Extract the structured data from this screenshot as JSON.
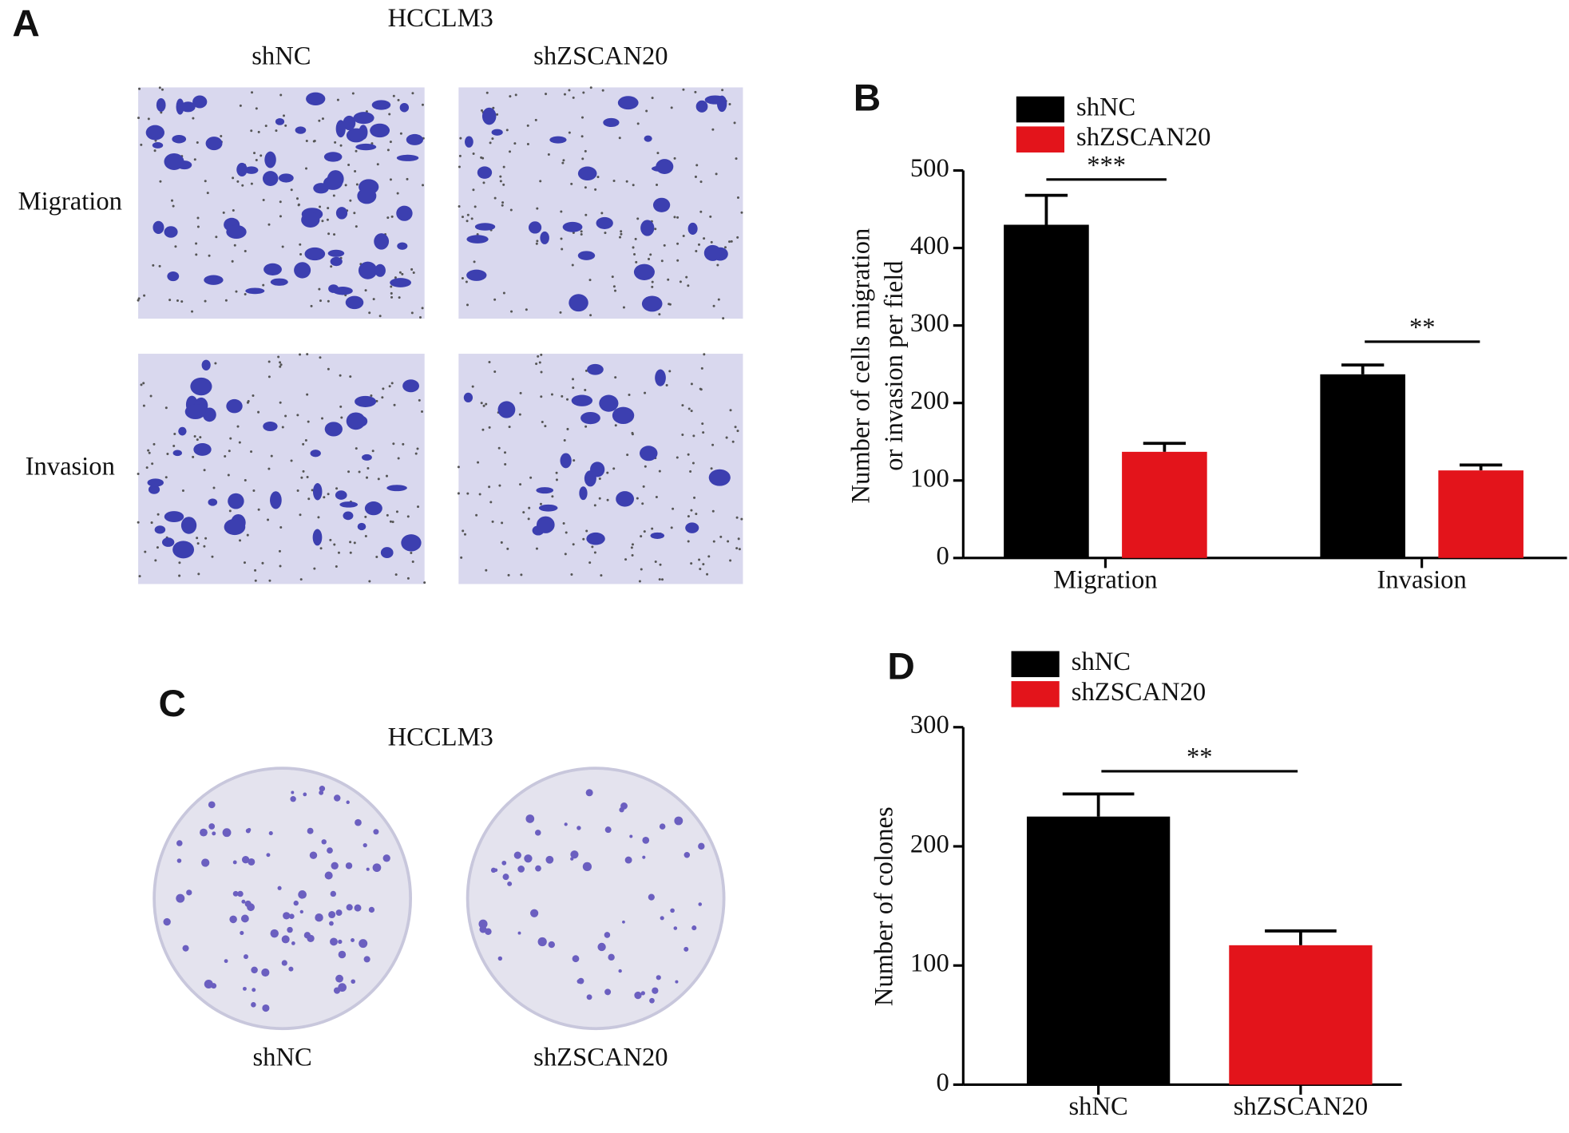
{
  "panels": {
    "a": {
      "label": "A",
      "title": "HCCLM3",
      "columns": [
        "shNC",
        "shZSCAN20"
      ],
      "rows": [
        "Migration",
        "Invasion"
      ]
    },
    "c": {
      "label": "C",
      "title": "HCCLM3",
      "columns": [
        "shNC",
        "shZSCAN20"
      ]
    }
  },
  "chart_data": [
    {
      "type": "bar",
      "panel": "B",
      "y_label": [
        "Number of cells migration",
        "or invasion per field"
      ],
      "categories": [
        "Migration",
        "Invasion"
      ],
      "series": [
        {
          "name": "shNC",
          "color": "#000000",
          "values": [
            430,
            237
          ],
          "errors": [
            38,
            12
          ]
        },
        {
          "name": "shZSCAN20",
          "color": "#e3141b",
          "values": [
            137,
            113
          ],
          "errors": [
            11,
            7
          ]
        }
      ],
      "annotations": [
        "***",
        "**"
      ],
      "ylim": [
        0,
        500
      ],
      "yticks": [
        0,
        100,
        200,
        300,
        400,
        500
      ]
    },
    {
      "type": "bar",
      "panel": "D",
      "y_label": [
        "Number of colones"
      ],
      "categories": [
        "shNC",
        "shZSCAN20"
      ],
      "values": [
        225,
        117
      ],
      "errors": [
        19,
        12
      ],
      "colors": [
        "#000000",
        "#e3141b"
      ],
      "annotations": [
        "**"
      ],
      "ylim": [
        0,
        300
      ],
      "yticks": [
        0,
        100,
        200,
        300
      ]
    }
  ]
}
